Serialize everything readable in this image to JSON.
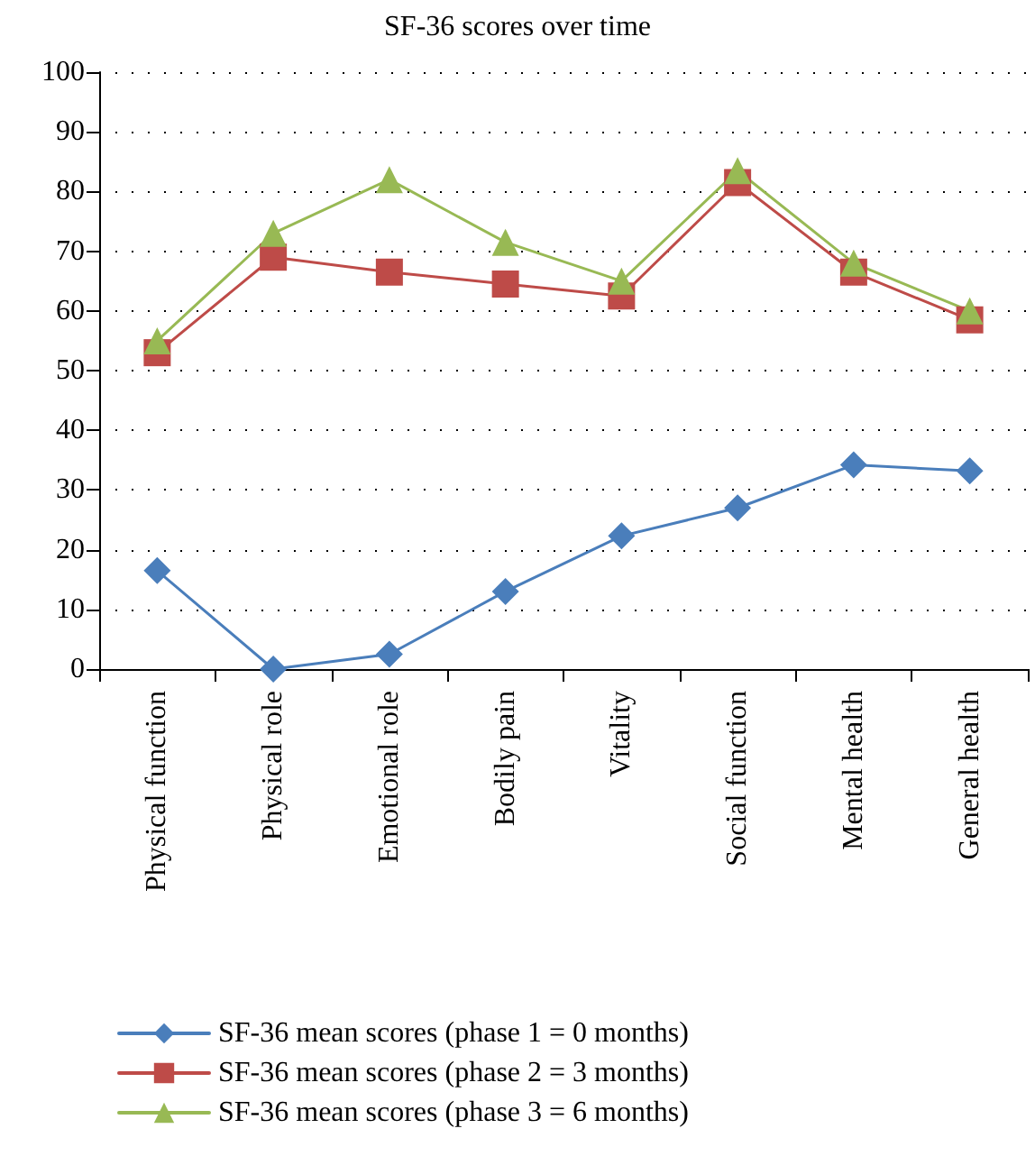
{
  "chart_data": {
    "type": "line",
    "title": "SF-36 scores over time",
    "categories": [
      "Physical function",
      "Physical role",
      "Emotional role",
      "Bodily pain",
      "Vitality",
      "Social function",
      "Mental health",
      "General health"
    ],
    "series": [
      {
        "name": "SF-36 mean scores (phase 1 = 0 months)",
        "color": "#4a7ebb",
        "marker": "diamond",
        "values": [
          16.5,
          0,
          2.5,
          13,
          22.3,
          27,
          34.2,
          33.2
        ]
      },
      {
        "name": "SF-36 mean scores (phase 2 = 3 months)",
        "color": "#be4b48",
        "marker": "square",
        "values": [
          53,
          69,
          66.5,
          64.5,
          62.5,
          81.5,
          66.5,
          58.5
        ]
      },
      {
        "name": "SF-36 mean scores (phase 3 = 6 months)",
        "color": "#98b954",
        "marker": "triangle",
        "values": [
          55,
          73,
          82,
          71.5,
          65,
          83.5,
          68,
          60
        ]
      }
    ],
    "ylim": [
      0,
      100
    ],
    "yticks": [
      0,
      10,
      20,
      30,
      40,
      50,
      60,
      70,
      80,
      90,
      100
    ],
    "grid": "y",
    "legend": "bottom",
    "line_style": "solid"
  }
}
